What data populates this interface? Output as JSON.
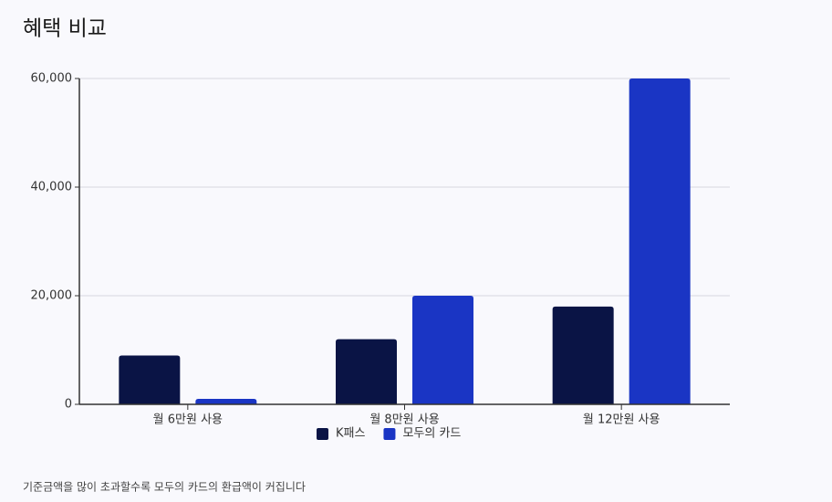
{
  "chart_data": {
    "type": "bar",
    "title": "혜택 비교",
    "categories": [
      "월 6만원 사용",
      "월 8만원 사용",
      "월 12만원 사용"
    ],
    "series": [
      {
        "name": "K패스",
        "color": "#0a1445",
        "values": [
          9000,
          12000,
          18000
        ]
      },
      {
        "name": "모두의 카드",
        "color": "#1a35c4",
        "values": [
          1000,
          20000,
          60000
        ]
      }
    ],
    "ylim": [
      0,
      60000
    ],
    "yticks": [
      0,
      {
        "value": 20000,
        "label": "20,000"
      },
      {
        "value": 40000,
        "label": "40,000"
      },
      {
        "value": 60000,
        "label": "60,000"
      }
    ],
    "grid": true,
    "legend": "bottom",
    "footnote": "기준금액을 많이 초과할수록 모두의 카드의 환급액이 커집니다"
  }
}
